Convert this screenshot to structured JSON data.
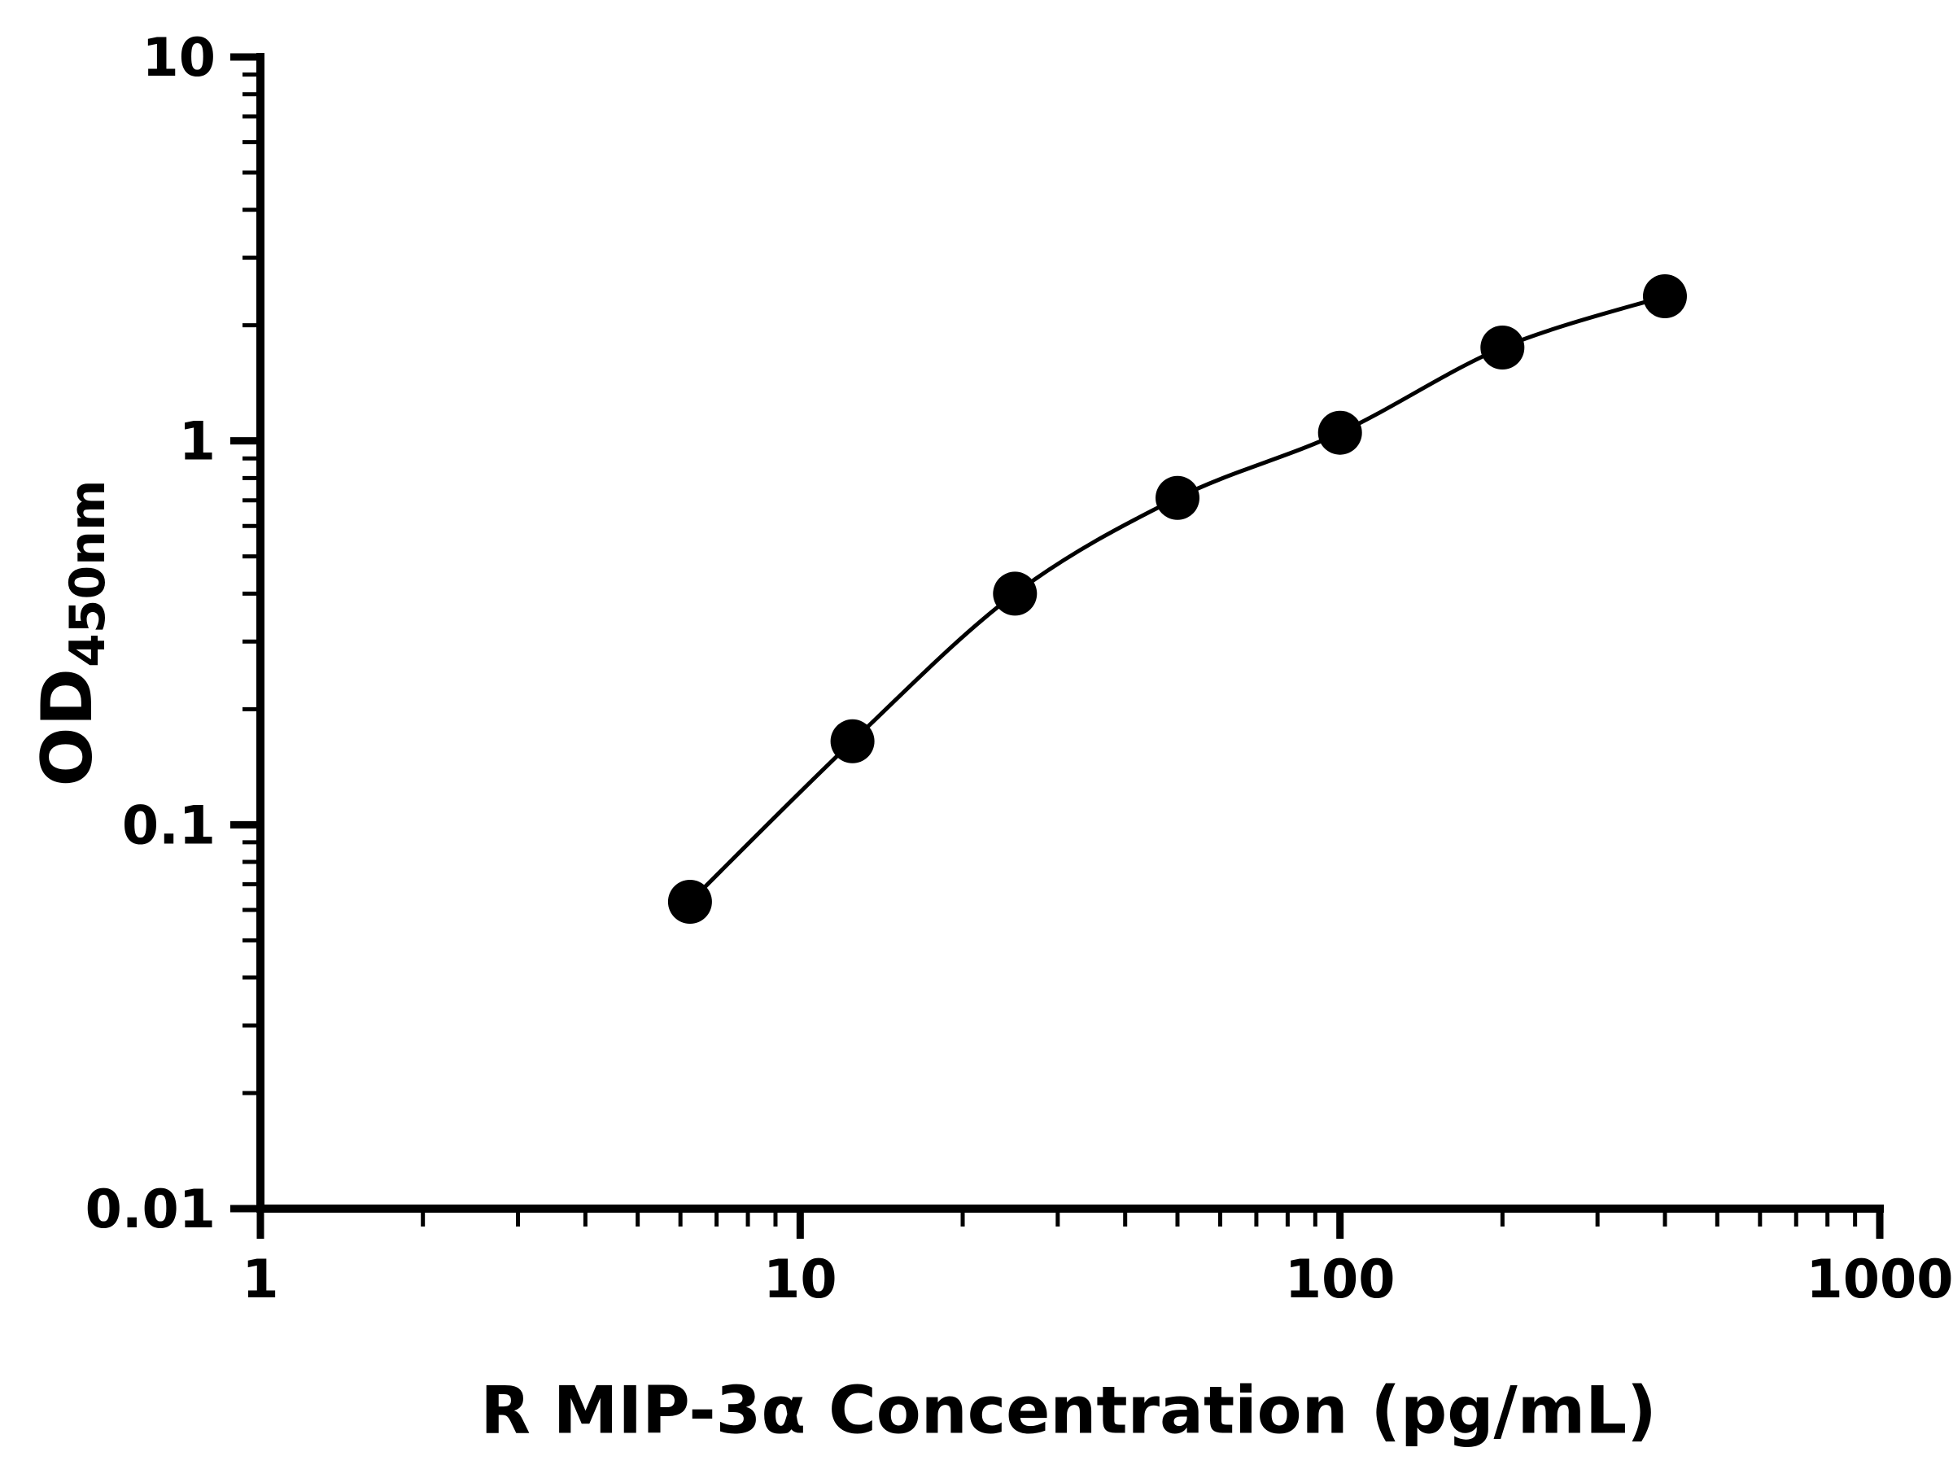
{
  "chart_data": {
    "type": "scatter",
    "title": "",
    "xlabel": "R MIP-3α Concentration (pg/mL)",
    "ylabel": "OD450nm",
    "ylabel_main": "OD",
    "ylabel_sub": "450nm",
    "x_scale": "log",
    "y_scale": "log",
    "xlim": [
      1,
      1000
    ],
    "ylim": [
      0.01,
      10
    ],
    "x_ticks": [
      1,
      10,
      100,
      1000
    ],
    "x_tick_labels": [
      "1",
      "10",
      "100",
      "1000"
    ],
    "y_ticks": [
      10,
      1,
      0.1,
      0.01
    ],
    "y_tick_labels": [
      "10",
      "1",
      "0.1",
      "0.01"
    ],
    "x": [
      6.25,
      12.5,
      25,
      50,
      100,
      200,
      400
    ],
    "y": [
      0.063,
      0.165,
      0.4,
      0.71,
      1.05,
      1.75,
      2.38
    ],
    "marker": "circle",
    "marker_color": "#000000",
    "line_color": "#000000",
    "axis_color": "#000000",
    "curve": "smooth",
    "grid": false,
    "legend": "none"
  }
}
